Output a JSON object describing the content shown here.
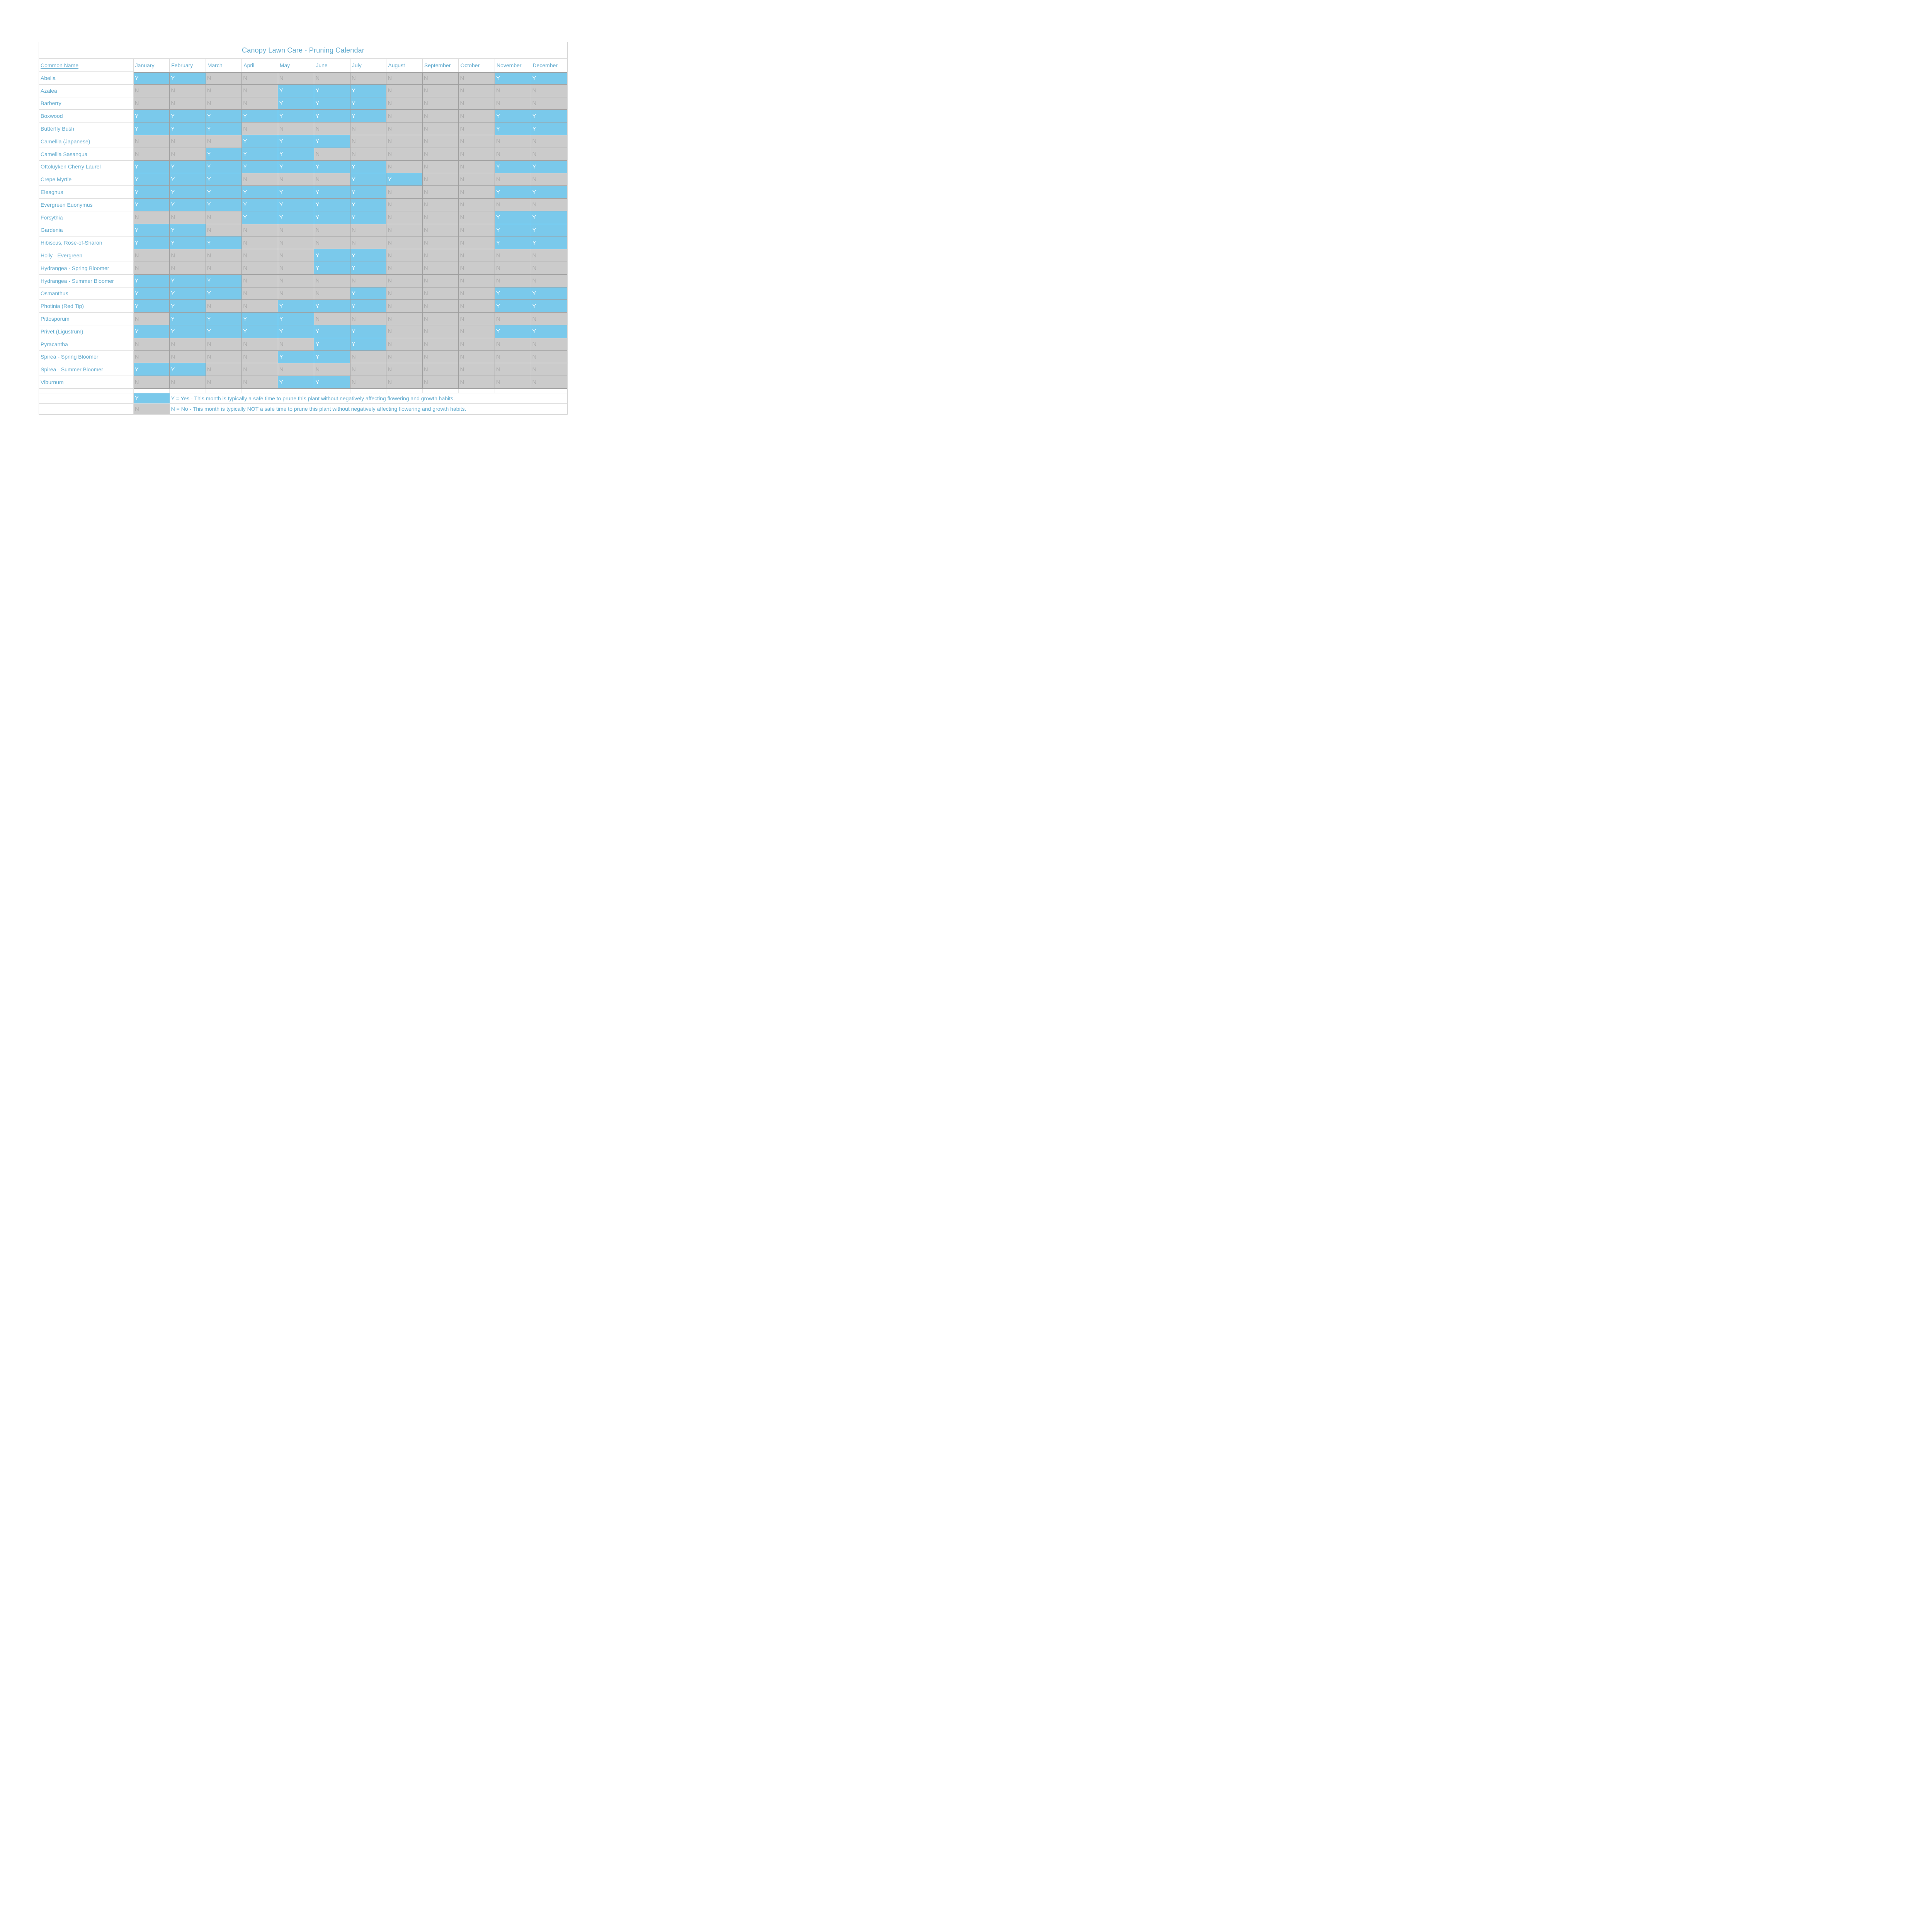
{
  "title": "Canopy Lawn Care - Pruning Calendar",
  "table": {
    "common_name_header": "Common Name",
    "months": [
      "January",
      "February",
      "March",
      "April",
      "May",
      "June",
      "July",
      "August",
      "September",
      "October",
      "November",
      "December"
    ],
    "plants": [
      {
        "name": "Abelia",
        "values": [
          "Y",
          "Y",
          "N",
          "N",
          "N",
          "N",
          "N",
          "N",
          "N",
          "N",
          "Y",
          "Y"
        ]
      },
      {
        "name": "Azalea",
        "values": [
          "N",
          "N",
          "N",
          "N",
          "Y",
          "Y",
          "Y",
          "N",
          "N",
          "N",
          "N",
          "N"
        ]
      },
      {
        "name": "Barberry",
        "values": [
          "N",
          "N",
          "N",
          "N",
          "Y",
          "Y",
          "Y",
          "N",
          "N",
          "N",
          "N",
          "N"
        ]
      },
      {
        "name": "Boxwood",
        "values": [
          "Y",
          "Y",
          "Y",
          "Y",
          "Y",
          "Y",
          "Y",
          "N",
          "N",
          "N",
          "Y",
          "Y"
        ]
      },
      {
        "name": "Butterfly Bush",
        "values": [
          "Y",
          "Y",
          "Y",
          "N",
          "N",
          "N",
          "N",
          "N",
          "N",
          "N",
          "Y",
          "Y"
        ]
      },
      {
        "name": "Camellia (Japanese)",
        "values": [
          "N",
          "N",
          "N",
          "Y",
          "Y",
          "Y",
          "N",
          "N",
          "N",
          "N",
          "N",
          "N"
        ]
      },
      {
        "name": "Camellia Sasanqua",
        "values": [
          "N",
          "N",
          "Y",
          "Y",
          "Y",
          "N",
          "N",
          "N",
          "N",
          "N",
          "N",
          "N"
        ]
      },
      {
        "name": "Ottoluyken Cherry Laurel",
        "values": [
          "Y",
          "Y",
          "Y",
          "Y",
          "Y",
          "Y",
          "Y",
          "N",
          "N",
          "N",
          "Y",
          "Y"
        ]
      },
      {
        "name": "Crepe Myrtle",
        "values": [
          "Y",
          "Y",
          "Y",
          "N",
          "N",
          "N",
          "Y",
          "Y",
          "N",
          "N",
          "N",
          "N"
        ]
      },
      {
        "name": "Eleagnus",
        "values": [
          "Y",
          "Y",
          "Y",
          "Y",
          "Y",
          "Y",
          "Y",
          "N",
          "N",
          "N",
          "Y",
          "Y"
        ]
      },
      {
        "name": "Evergreen Euonymus",
        "values": [
          "Y",
          "Y",
          "Y",
          "Y",
          "Y",
          "Y",
          "Y",
          "N",
          "N",
          "N",
          "N",
          "N"
        ]
      },
      {
        "name": "Forsythia",
        "values": [
          "N",
          "N",
          "N",
          "Y",
          "Y",
          "Y",
          "Y",
          "N",
          "N",
          "N",
          "Y",
          "Y"
        ]
      },
      {
        "name": "Gardenia",
        "values": [
          "Y",
          "Y",
          "N",
          "N",
          "N",
          "N",
          "N",
          "N",
          "N",
          "N",
          "Y",
          "Y"
        ]
      },
      {
        "name": "Hibiscus, Rose-of-Sharon",
        "values": [
          "Y",
          "Y",
          "Y",
          "N",
          "N",
          "N",
          "N",
          "N",
          "N",
          "N",
          "Y",
          "Y"
        ]
      },
      {
        "name": "Holly - Evergreen",
        "values": [
          "N",
          "N",
          "N",
          "N",
          "N",
          "Y",
          "Y",
          "N",
          "N",
          "N",
          "N",
          "N"
        ]
      },
      {
        "name": "Hydrangea - Spring Bloomer",
        "values": [
          "N",
          "N",
          "N",
          "N",
          "N",
          "Y",
          "Y",
          "N",
          "N",
          "N",
          "N",
          "N"
        ]
      },
      {
        "name": "Hydrangea - Summer Bloomer",
        "values": [
          "Y",
          "Y",
          "Y",
          "N",
          "N",
          "N",
          "N",
          "N",
          "N",
          "N",
          "N",
          "N"
        ]
      },
      {
        "name": "Osmanthus",
        "values": [
          "Y",
          "Y",
          "Y",
          "N",
          "N",
          "N",
          "Y",
          "N",
          "N",
          "N",
          "Y",
          "Y"
        ]
      },
      {
        "name": "Photinia (Red Tip)",
        "values": [
          "Y",
          "Y",
          "N",
          "N",
          "Y",
          "Y",
          "Y",
          "N",
          "N",
          "N",
          "Y",
          "Y"
        ]
      },
      {
        "name": "Pittosporum",
        "values": [
          "N",
          "Y",
          "Y",
          "Y",
          "Y",
          "N",
          "N",
          "N",
          "N",
          "N",
          "N",
          "N"
        ]
      },
      {
        "name": "Privet (Ligustrum)",
        "values": [
          "Y",
          "Y",
          "Y",
          "Y",
          "Y",
          "Y",
          "Y",
          "N",
          "N",
          "N",
          "Y",
          "Y"
        ]
      },
      {
        "name": "Pyracantha",
        "values": [
          "N",
          "N",
          "N",
          "N",
          "N",
          "Y",
          "Y",
          "N",
          "N",
          "N",
          "N",
          "N"
        ]
      },
      {
        "name": "Spirea - Spring Bloomer",
        "values": [
          "N",
          "N",
          "N",
          "N",
          "Y",
          "Y",
          "N",
          "N",
          "N",
          "N",
          "N",
          "N"
        ]
      },
      {
        "name": "Spirea - Summer Bloomer",
        "values": [
          "Y",
          "Y",
          "N",
          "N",
          "N",
          "N",
          "N",
          "N",
          "N",
          "N",
          "N",
          "N"
        ]
      },
      {
        "name": "Viburnum",
        "values": [
          "N",
          "N",
          "N",
          "N",
          "Y",
          "Y",
          "N",
          "N",
          "N",
          "N",
          "N",
          "N"
        ]
      }
    ],
    "legend": [
      {
        "value": "Y",
        "text": "Y = Yes - This month is typically a safe time to prune this plant without negatively affecting flowering and growth habits."
      },
      {
        "value": "N",
        "text": "N = No - This month is typically NOT a safe time to prune this plant without negatively affecting flowering and growth habits."
      }
    ]
  },
  "colors": {
    "yes_fill": "#7ac9eb",
    "no_fill": "#cbcbcb",
    "yes_letter": "#ffffff",
    "no_letter": "#acacac",
    "accent_text": "#5fa9cd",
    "grid_dark": "#9e9e9e",
    "grid_light": "#dcdcdc"
  }
}
